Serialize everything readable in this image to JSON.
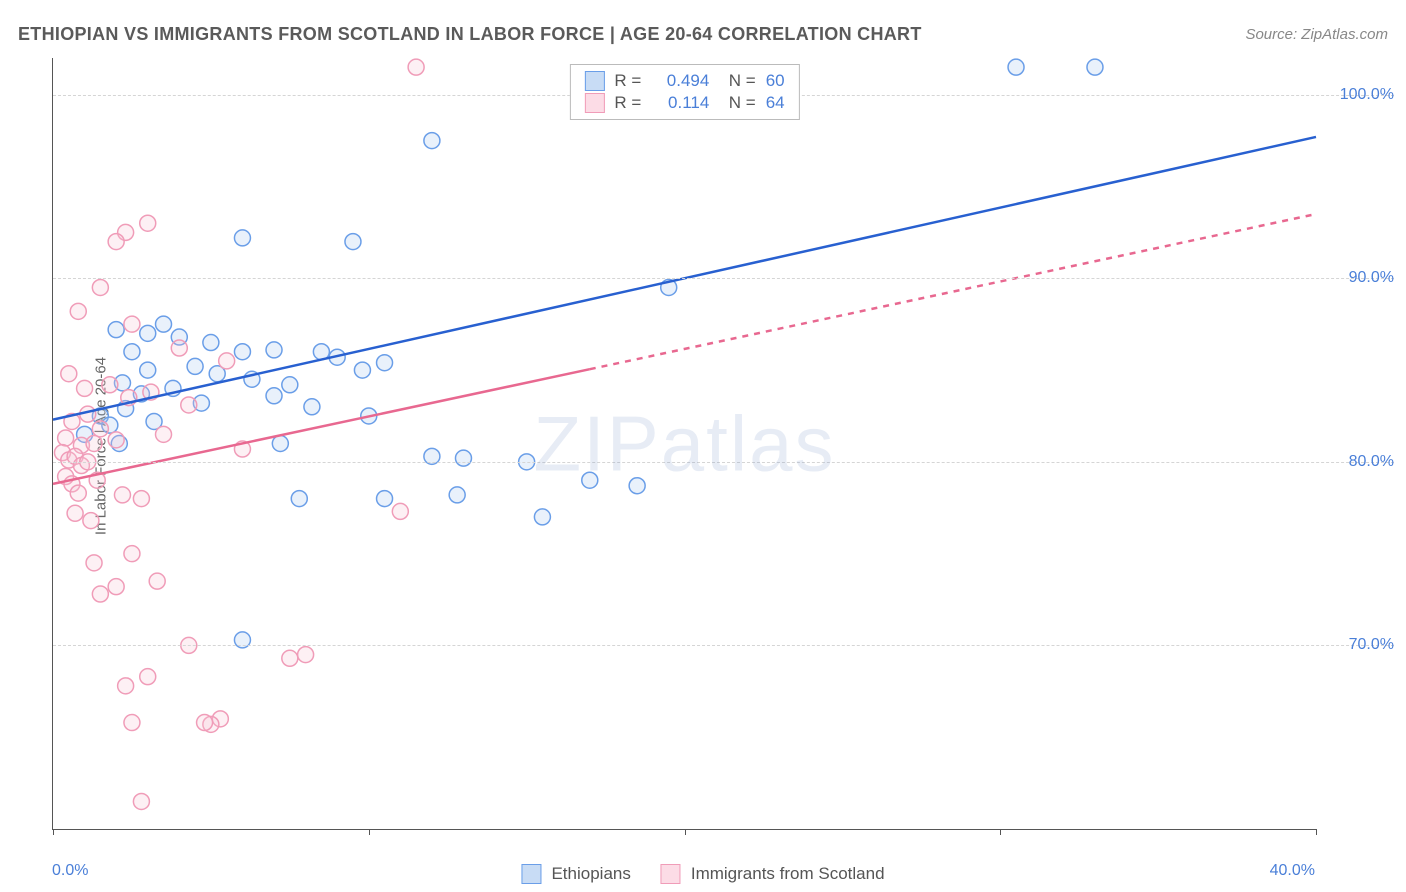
{
  "title": "ETHIOPIAN VS IMMIGRANTS FROM SCOTLAND IN LABOR FORCE | AGE 20-64 CORRELATION CHART",
  "source": "Source: ZipAtlas.com",
  "yaxis_label": "In Labor Force | Age 20-64",
  "watermark": {
    "bold": "ZIP",
    "light": "atlas"
  },
  "chart": {
    "type": "scatter_with_trend",
    "xlim": [
      0,
      40
    ],
    "ylim": [
      60,
      102
    ],
    "xticks": [
      0,
      10,
      20,
      30,
      40
    ],
    "xtick_labels": [
      "0.0%",
      "",
      "",
      "",
      "40.0%"
    ],
    "yticks": [
      70,
      80,
      90,
      100
    ],
    "ytick_labels": [
      "70.0%",
      "80.0%",
      "90.0%",
      "100.0%"
    ],
    "grid_color": "#d5d5d5",
    "axis_color": "#555555",
    "label_color": "#4a7fd8",
    "marker_radius": 8,
    "series": [
      {
        "name": "Ethiopians",
        "color_stroke": "#6a9ee8",
        "color_fill": "#a8c8f0",
        "swatch_border": "#6a9ee8",
        "swatch_fill": "#c8dcf5",
        "R": "0.494",
        "N": "60",
        "trend": {
          "x1": 0,
          "y1": 82.3,
          "x2": 40,
          "y2": 97.7,
          "solid_until": 40,
          "color": "#2860d0"
        },
        "points": [
          [
            30.5,
            101.5
          ],
          [
            33,
            101.5
          ],
          [
            12,
            97.5
          ],
          [
            9.5,
            92
          ],
          [
            6,
            92.2
          ],
          [
            19.5,
            89.5
          ],
          [
            2,
            87.2
          ],
          [
            3,
            87
          ],
          [
            3.5,
            87.5
          ],
          [
            2.5,
            86
          ],
          [
            4,
            86.8
          ],
          [
            5,
            86.5
          ],
          [
            6,
            86
          ],
          [
            7,
            86.1
          ],
          [
            8.5,
            86
          ],
          [
            9,
            85.7
          ],
          [
            10.5,
            85.4
          ],
          [
            3,
            85
          ],
          [
            4.5,
            85.2
          ],
          [
            5.2,
            84.8
          ],
          [
            6.3,
            84.5
          ],
          [
            7.5,
            84.2
          ],
          [
            9.8,
            85
          ],
          [
            2.2,
            84.3
          ],
          [
            2.8,
            83.7
          ],
          [
            3.8,
            84
          ],
          [
            4.7,
            83.2
          ],
          [
            7,
            83.6
          ],
          [
            8.2,
            83
          ],
          [
            1.5,
            82.5
          ],
          [
            2.3,
            82.9
          ],
          [
            3.2,
            82.2
          ],
          [
            1.8,
            82
          ],
          [
            1,
            81.5
          ],
          [
            2.1,
            81
          ],
          [
            10,
            82.5
          ],
          [
            12,
            80.3
          ],
          [
            13,
            80.2
          ],
          [
            15,
            80
          ],
          [
            17,
            79
          ],
          [
            18.5,
            78.7
          ],
          [
            7.2,
            81
          ],
          [
            10.5,
            78
          ],
          [
            7.8,
            78
          ],
          [
            12.8,
            78.2
          ],
          [
            15.5,
            77
          ],
          [
            6,
            70.3
          ]
        ]
      },
      {
        "name": "Immigrants from Scotland",
        "color_stroke": "#f09cb8",
        "color_fill": "#f8c4d4",
        "swatch_border": "#f09cb8",
        "swatch_fill": "#fcdce6",
        "R": "0.114",
        "N": "64",
        "trend": {
          "x1": 0,
          "y1": 78.8,
          "x2": 40,
          "y2": 93.5,
          "solid_until": 17,
          "color": "#e86890"
        },
        "points": [
          [
            11.5,
            101.5
          ],
          [
            3,
            93
          ],
          [
            2.3,
            92.5
          ],
          [
            2,
            92
          ],
          [
            1.5,
            89.5
          ],
          [
            0.8,
            88.2
          ],
          [
            2.5,
            87.5
          ],
          [
            4,
            86.2
          ],
          [
            5.5,
            85.5
          ],
          [
            0.5,
            84.8
          ],
          [
            1,
            84
          ],
          [
            1.8,
            84.2
          ],
          [
            2.4,
            83.5
          ],
          [
            3.1,
            83.8
          ],
          [
            4.3,
            83.1
          ],
          [
            0.6,
            82.2
          ],
          [
            1.1,
            82.6
          ],
          [
            1.5,
            81.8
          ],
          [
            0.4,
            81.3
          ],
          [
            0.9,
            80.9
          ],
          [
            1.3,
            81
          ],
          [
            2,
            81.2
          ],
          [
            3.5,
            81.5
          ],
          [
            0.3,
            80.5
          ],
          [
            0.5,
            80.1
          ],
          [
            0.7,
            80.3
          ],
          [
            0.9,
            79.8
          ],
          [
            1.1,
            80
          ],
          [
            0.4,
            79.2
          ],
          [
            0.6,
            78.8
          ],
          [
            1.4,
            79
          ],
          [
            6,
            80.7
          ],
          [
            0.8,
            78.3
          ],
          [
            2.2,
            78.2
          ],
          [
            2.8,
            78
          ],
          [
            0.7,
            77.2
          ],
          [
            1.2,
            76.8
          ],
          [
            2.5,
            75
          ],
          [
            1.3,
            74.5
          ],
          [
            3.3,
            73.5
          ],
          [
            2,
            73.2
          ],
          [
            1.5,
            72.8
          ],
          [
            11,
            77.3
          ],
          [
            4.3,
            70
          ],
          [
            8,
            69.5
          ],
          [
            7.5,
            69.3
          ],
          [
            2.3,
            67.8
          ],
          [
            3,
            68.3
          ],
          [
            5.3,
            66
          ],
          [
            5,
            65.7
          ],
          [
            4.8,
            65.8
          ],
          [
            2.5,
            65.8
          ],
          [
            2.8,
            61.5
          ]
        ]
      }
    ]
  },
  "bottom_legend": [
    {
      "label": "Ethiopians",
      "swatch_border": "#6a9ee8",
      "swatch_fill": "#c8dcf5"
    },
    {
      "label": "Immigrants from Scotland",
      "swatch_border": "#f09cb8",
      "swatch_fill": "#fcdce6"
    }
  ]
}
